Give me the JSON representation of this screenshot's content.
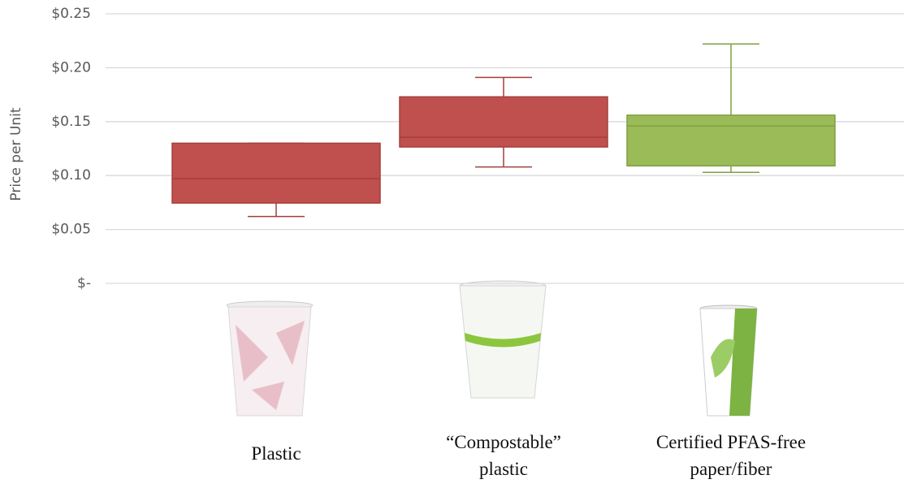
{
  "chart_data": {
    "type": "box",
    "y_label": "Price per Unit",
    "categories": [
      "Plastic",
      "“Compostable” plastic",
      "Certified PFAS-free paper/fiber"
    ],
    "series": [
      {
        "min": 0.062,
        "q1": 0.0745,
        "median": 0.097,
        "q3": 0.13,
        "max": 0.13,
        "color": "#c0504d"
      },
      {
        "min": 0.108,
        "q1": 0.1265,
        "median": 0.1355,
        "q3": 0.173,
        "max": 0.191,
        "color": "#c0504d"
      },
      {
        "min": 0.103,
        "q1": 0.109,
        "median": 0.146,
        "q3": 0.156,
        "max": 0.222,
        "color": "#9bbb59"
      }
    ],
    "ylim": [
      0,
      0.25
    ],
    "yticks": [
      {
        "value": 0,
        "label": "$-"
      },
      {
        "value": 0.05,
        "label": "$0.05"
      },
      {
        "value": 0.1,
        "label": "$0.10"
      },
      {
        "value": 0.15,
        "label": "$0.15"
      },
      {
        "value": 0.2,
        "label": "$0.20"
      },
      {
        "value": 0.25,
        "label": "$0.25"
      }
    ],
    "grid": true
  }
}
